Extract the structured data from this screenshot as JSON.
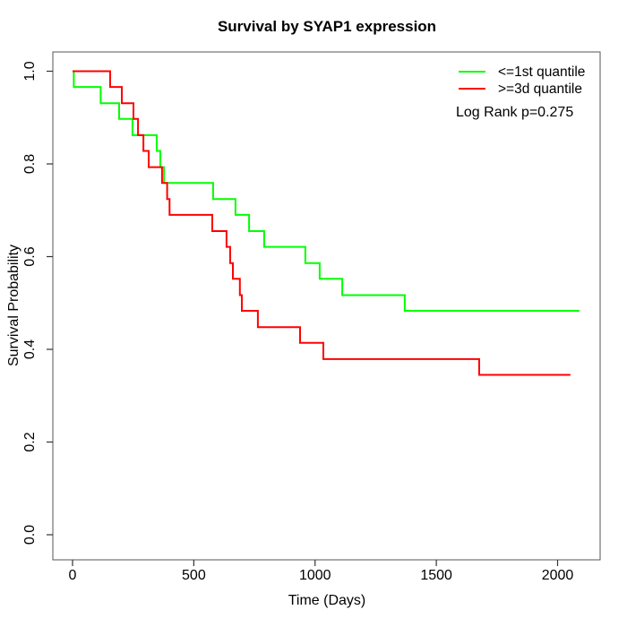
{
  "chart_data": {
    "type": "line",
    "subtype": "kaplan-meier-step",
    "title": "Survival by SYAP1 expression",
    "xlabel": "Time (Days)",
    "ylabel": "Survival Probability",
    "xlim": [
      0,
      2175
    ],
    "ylim": [
      0,
      1.0
    ],
    "x_ticks": [
      "0",
      "500",
      "1000",
      "1500",
      "2000"
    ],
    "y_ticks": [
      "0.0",
      "0.2",
      "0.4",
      "0.6",
      "0.8",
      "1.0"
    ],
    "grid": false,
    "legend_position": "top-right",
    "annotation": "Log Rank p=0.275",
    "series": [
      {
        "name": "<=1st quantile",
        "color": "#00ff00",
        "start": [
          0,
          1.0
        ],
        "end_time": 2090,
        "steps": [
          [
            5,
            0.966
          ],
          [
            116,
            0.931
          ],
          [
            192,
            0.897
          ],
          [
            247,
            0.862
          ],
          [
            347,
            0.828
          ],
          [
            362,
            0.793
          ],
          [
            377,
            0.759
          ],
          [
            580,
            0.724
          ],
          [
            672,
            0.69
          ],
          [
            728,
            0.655
          ],
          [
            790,
            0.621
          ],
          [
            960,
            0.586
          ],
          [
            1019,
            0.552
          ],
          [
            1112,
            0.517
          ],
          [
            1370,
            0.483
          ]
        ]
      },
      {
        "name": ">=3d quantile",
        "color": "#ff0000",
        "start": [
          0,
          1.0
        ],
        "end_time": 2053,
        "steps": [
          [
            155,
            0.966
          ],
          [
            203,
            0.931
          ],
          [
            251,
            0.897
          ],
          [
            270,
            0.862
          ],
          [
            292,
            0.828
          ],
          [
            314,
            0.793
          ],
          [
            369,
            0.759
          ],
          [
            390,
            0.724
          ],
          [
            400,
            0.69
          ],
          [
            576,
            0.655
          ],
          [
            635,
            0.621
          ],
          [
            650,
            0.586
          ],
          [
            661,
            0.552
          ],
          [
            690,
            0.517
          ],
          [
            698,
            0.483
          ],
          [
            764,
            0.448
          ],
          [
            938,
            0.414
          ],
          [
            1034,
            0.379
          ],
          [
            1677,
            0.345
          ]
        ]
      }
    ]
  },
  "colors": {
    "background": "#ffffff",
    "box": "#555555",
    "tick": "#333333",
    "text": "#000000"
  }
}
